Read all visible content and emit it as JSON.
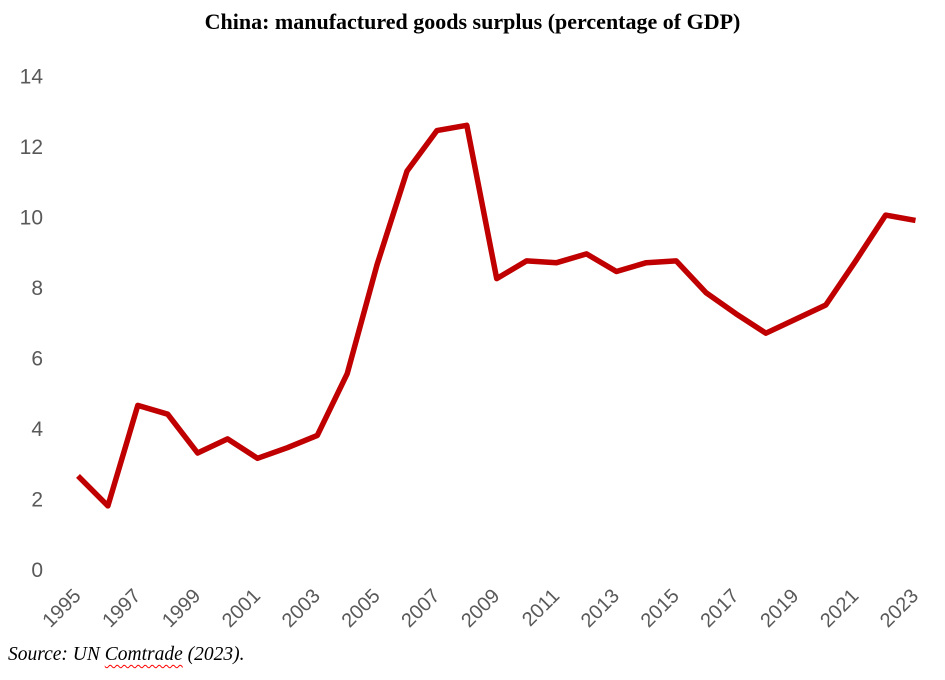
{
  "chart_data": {
    "type": "line",
    "title": "China: manufactured goods surplus (percentage of GDP)",
    "xlabel": "",
    "ylabel": "",
    "x": [
      1995,
      1996,
      1997,
      1998,
      1999,
      2000,
      2001,
      2002,
      2003,
      2004,
      2005,
      2006,
      2007,
      2008,
      2009,
      2010,
      2011,
      2012,
      2013,
      2014,
      2015,
      2016,
      2017,
      2018,
      2019,
      2020,
      2021,
      2022,
      2023
    ],
    "series": [
      {
        "name": "China manufactured goods surplus (% of GDP)",
        "color": "#c00000",
        "values": [
          2.65,
          1.8,
          4.65,
          4.4,
          3.3,
          3.7,
          3.15,
          3.45,
          3.8,
          5.55,
          8.65,
          11.3,
          12.45,
          12.6,
          8.25,
          8.75,
          8.7,
          8.95,
          8.45,
          8.7,
          8.75,
          7.85,
          7.25,
          6.7,
          7.1,
          7.5,
          8.75,
          10.05,
          9.9
        ]
      }
    ],
    "ylim": [
      0,
      14
    ],
    "yticks": [
      0,
      2,
      4,
      6,
      8,
      10,
      12,
      14
    ],
    "xticks": [
      1995,
      1997,
      1999,
      2001,
      2003,
      2005,
      2007,
      2009,
      2011,
      2013,
      2015,
      2017,
      2019,
      2021,
      2023
    ],
    "xtick_rotation_deg": 45,
    "grid": false,
    "axis_lines": false,
    "legend_position": "none"
  },
  "source": {
    "prefix": "Source: UN ",
    "misspelled_word": "Comtrade",
    "suffix": " (2023)."
  },
  "colors": {
    "line": "#c00000",
    "tick_label": "#595959",
    "title": "#000000",
    "squiggle": "#ff0000",
    "background": "#ffffff"
  }
}
